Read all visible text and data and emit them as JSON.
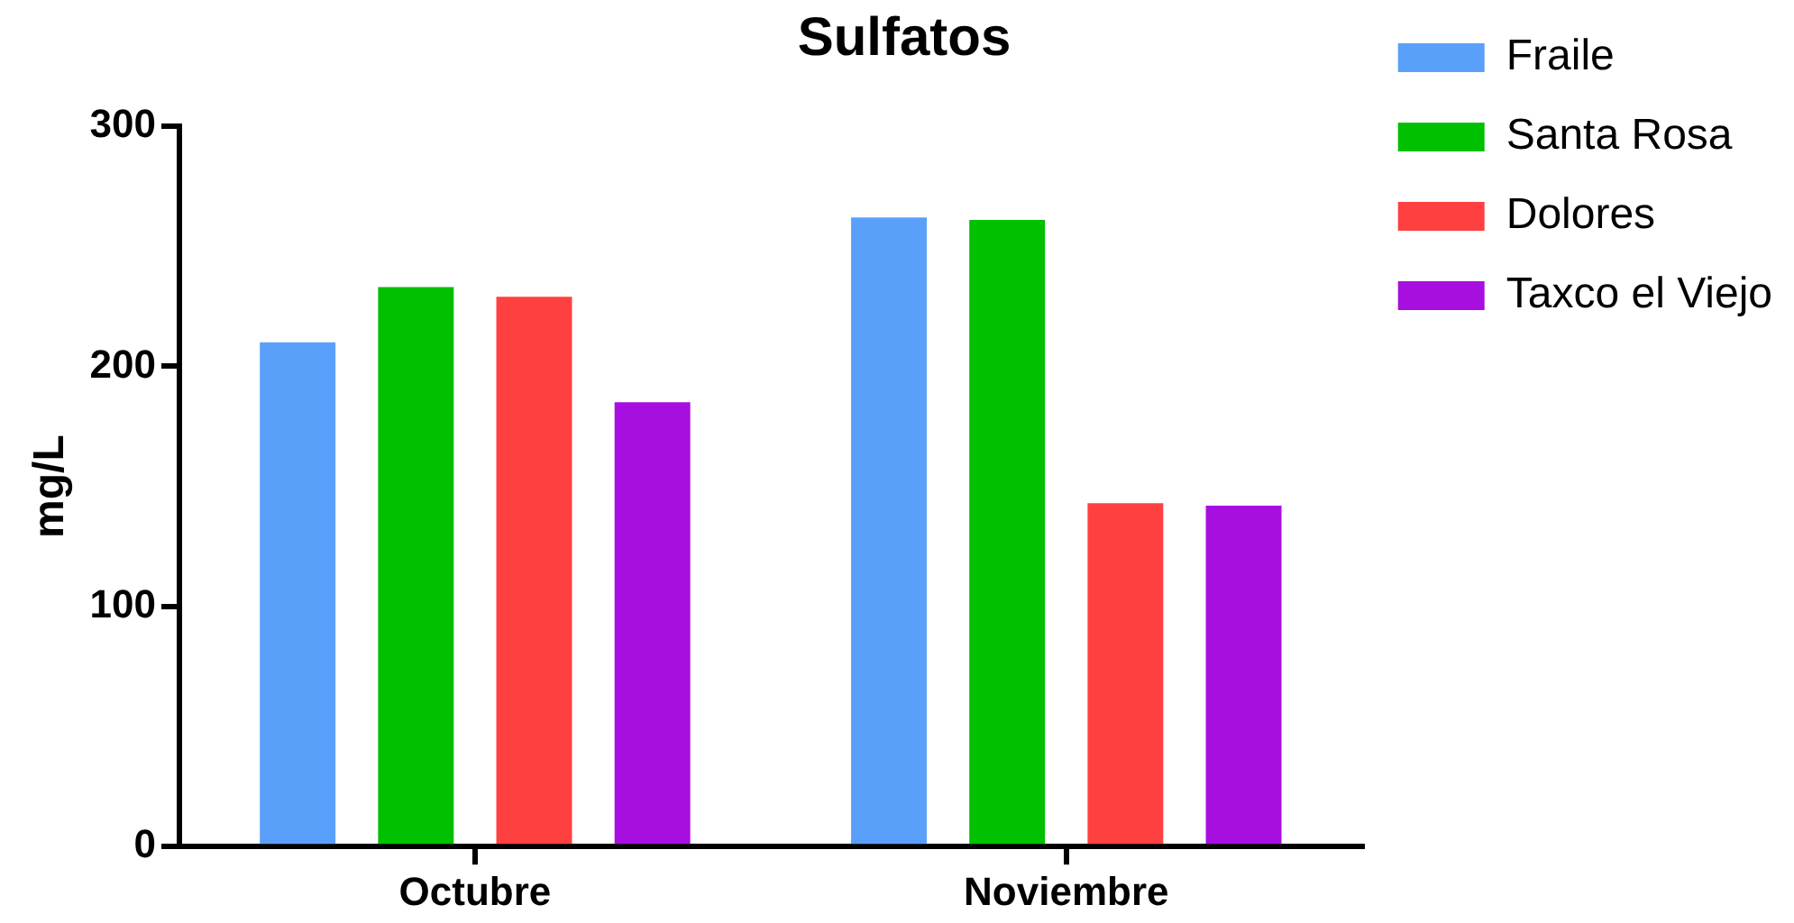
{
  "chart_data": {
    "type": "bar",
    "title": "Sulfatos",
    "ylabel": "mg/L",
    "categories": [
      "Octubre",
      "Noviembre"
    ],
    "series": [
      {
        "name": "Fraile",
        "color": "#5aa0fa",
        "values": [
          210,
          262
        ]
      },
      {
        "name": "Santa Rosa",
        "color": "#00c000",
        "values": [
          233,
          261
        ]
      },
      {
        "name": "Dolores",
        "color": "#ff4040",
        "values": [
          229,
          143
        ]
      },
      {
        "name": "Taxco el Viejo",
        "color": "#a70fe0",
        "values": [
          185,
          142
        ]
      }
    ],
    "ylim": [
      0,
      300
    ],
    "yticks": [
      0,
      100,
      200,
      300
    ],
    "grid": false,
    "legend": "right"
  }
}
